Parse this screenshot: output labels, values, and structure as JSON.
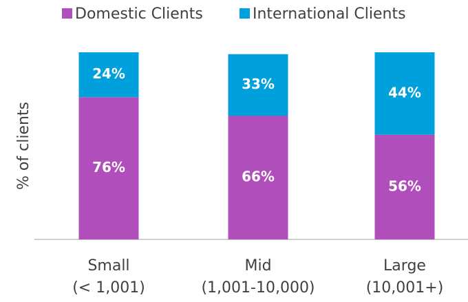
{
  "chart_data": {
    "type": "stacked_bar",
    "y_label": "% of clients",
    "categories": [
      [
        "Small",
        "(< 1,001)"
      ],
      [
        "Mid",
        "(1,001-10,000)"
      ],
      [
        "Large",
        "(10,001+)"
      ]
    ],
    "series": [
      {
        "name": "Domestic Clients",
        "color": "#b04fbb",
        "values": [
          76,
          66,
          56
        ],
        "value_labels": [
          "76%",
          "66%",
          "56%"
        ]
      },
      {
        "name": "International Clients",
        "color": "#00a0dc",
        "values": [
          24,
          33,
          44
        ],
        "value_labels": [
          "24%",
          "33%",
          "44%"
        ]
      }
    ],
    "ylim": [
      0,
      100
    ],
    "legend": "top"
  }
}
